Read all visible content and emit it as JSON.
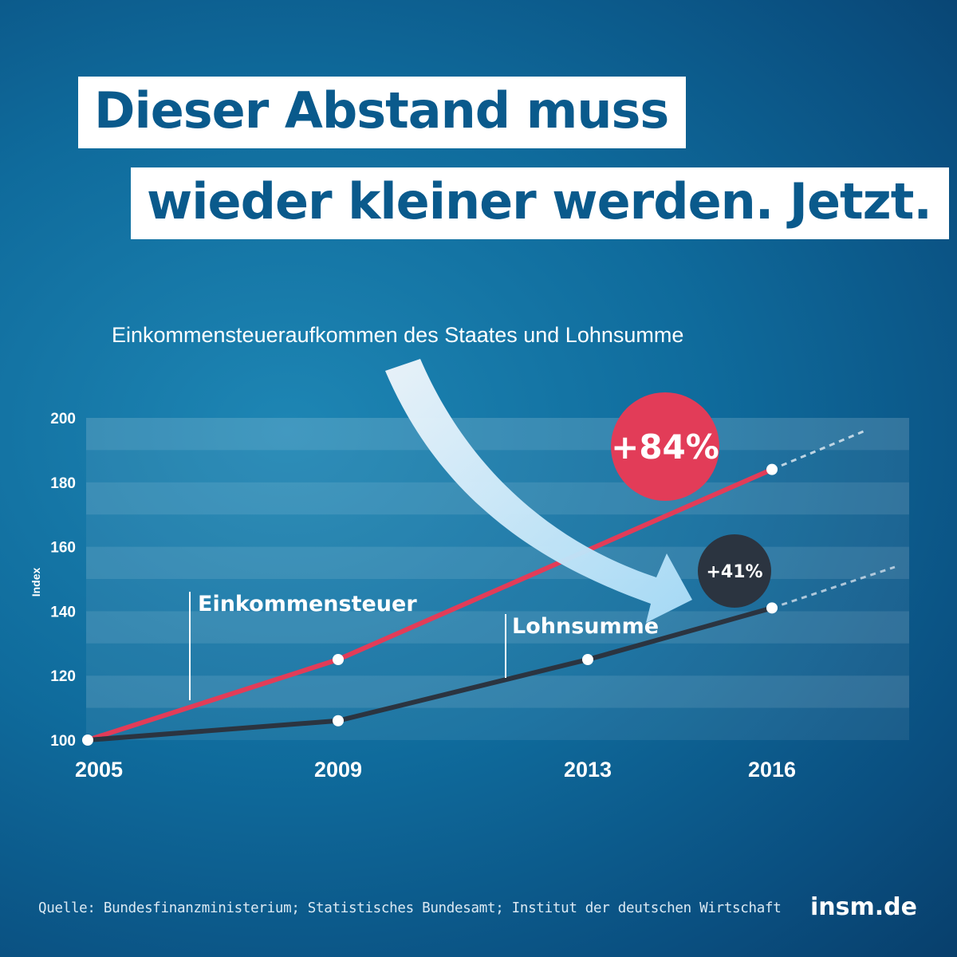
{
  "headline": {
    "line1": "Dieser Abstand muss",
    "line2": "wieder kleiner werden. Jetzt."
  },
  "footer": {
    "source": "Quelle: Bundesfinanzministerium; Statistisches Bundesamt; Institut der deutschen Wirtschaft",
    "brand": "insm.de"
  },
  "colors": {
    "accent_red": "#e23c58",
    "series_dark": "#2b3440",
    "background": "#0f6b9c",
    "headline_text": "#0a5a8c"
  },
  "chart_data": {
    "type": "line",
    "title": "Einkommensteueraufkommen des Staates und Lohnsumme",
    "ylabel": "Index",
    "xlabel": "",
    "ylim": [
      100,
      200
    ],
    "yticks": [
      100,
      120,
      140,
      160,
      180,
      200
    ],
    "x": [
      2005,
      2009,
      2013,
      2016
    ],
    "x_tick_labels": [
      "2005",
      "2009",
      "2013",
      "2016"
    ],
    "grid": "horizontal bands",
    "series": [
      {
        "name": "Einkommensteuer",
        "color": "#e23c58",
        "values": [
          100,
          125,
          null,
          184
        ],
        "change_label": "+84%",
        "trend": "dashed continuation after 2016"
      },
      {
        "name": "Lohnsumme",
        "color": "#2b3440",
        "values": [
          100,
          106,
          125,
          141
        ],
        "change_label": "+41%",
        "trend": "dashed continuation after 2016"
      }
    ]
  }
}
